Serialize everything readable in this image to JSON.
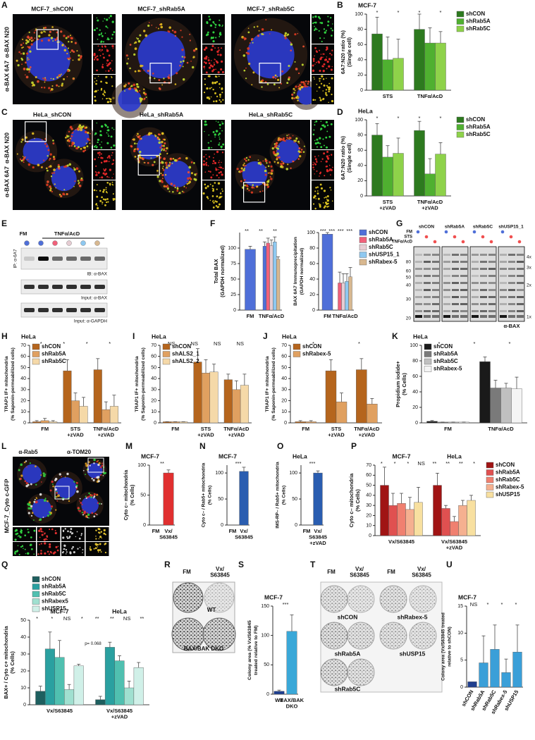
{
  "figure": {
    "panel_letters": [
      "A",
      "B",
      "C",
      "D",
      "E",
      "F",
      "G",
      "H",
      "I",
      "J",
      "K",
      "L",
      "M",
      "N",
      "O",
      "P",
      "Q",
      "R",
      "S",
      "T",
      "U"
    ],
    "A": {
      "labels": [
        "MCF-7_shCON",
        "MCF-7_shRab5A",
        "MCF-7_shRab5C"
      ],
      "stain_green": "α-BAX 6A7",
      "stain_red": "α-BAX N20"
    },
    "C": {
      "labels": [
        "HeLa_shCON",
        "HeLa_shRab5A",
        "HeLa_shRab5C"
      ],
      "stain_green": "α-BAX 6A7",
      "stain_red": "α-BAX N20"
    },
    "E": {
      "treatments": [
        "FM",
        "TNFα/AcD"
      ],
      "ip": "IP: α-6A7",
      "blots": [
        "IB: α-BAX",
        "Input: α-BAX",
        "Input: α-GAPDH"
      ]
    },
    "G": {
      "treatments": [
        "FM",
        "STS",
        "TNFα/AcD"
      ],
      "lanes": [
        "shCON",
        "shRab5A",
        "shRab5C",
        "shUSP15_1"
      ],
      "markers": [
        "80",
        "60",
        "50",
        "40",
        "30",
        "20"
      ],
      "oligomers": [
        "4x",
        "3x",
        "2x",
        "1x"
      ],
      "antibody": "α-BAX"
    },
    "L": {
      "stain_red": "α-Rab5",
      "stain_white": "α-TOM20",
      "cell_line": "MCF-7_Cyto c-GFP"
    },
    "R": {
      "columns": [
        "FM",
        "Vx/ S63845"
      ],
      "rows": [
        "WT",
        "BAX/BAK DKO"
      ]
    },
    "T": {
      "columns": [
        "FM",
        "Vx/ S63845",
        "FM",
        "Vx/ S63845"
      ],
      "wells": [
        "shCON",
        "shRabex-5",
        "shRab5A",
        "shUSP15",
        "shRab5C"
      ]
    }
  },
  "chart_data": [
    {
      "type": "bar",
      "title": "MCF-7",
      "y_label": [
        "6A7:N20 ratio (%)",
        "(Single cell)"
      ],
      "categories": [
        "STS",
        "TNFα/AcD"
      ],
      "series": [
        {
          "name": "shCON",
          "color": "#2d7a1f",
          "values": [
            74,
            80
          ],
          "errors": [
            22,
            20
          ]
        },
        {
          "name": "shRab5A",
          "color": "#4fb030",
          "values": [
            40,
            62
          ],
          "errors": [
            30,
            20
          ]
        },
        {
          "name": "shRab5C",
          "color": "#8ed24a",
          "values": [
            42,
            62
          ],
          "errors": [
            25,
            15
          ]
        }
      ],
      "ylim": [
        0,
        100
      ],
      "yticks": [
        0,
        20,
        40,
        60,
        80,
        100
      ],
      "legend": "right",
      "annotations": [
        "*",
        "*",
        "*",
        "*"
      ]
    },
    {
      "type": "bar",
      "title": "HeLa",
      "y_label": [
        "6A7:N20 ratio (%)",
        "(Single cell)"
      ],
      "categories": [
        "STS +zVAD",
        "TNFα/AcD +zVAD"
      ],
      "series": [
        {
          "name": "shCON",
          "color": "#2d7a1f",
          "values": [
            80,
            86
          ],
          "errors": [
            15,
            12
          ]
        },
        {
          "name": "shRab5A",
          "color": "#4fb030",
          "values": [
            51,
            29
          ],
          "errors": [
            15,
            20
          ]
        },
        {
          "name": "shRab5C",
          "color": "#8ed24a",
          "values": [
            56,
            55
          ],
          "errors": [
            20,
            15
          ]
        }
      ],
      "ylim": [
        0,
        100
      ],
      "yticks": [
        0,
        20,
        40,
        60,
        80,
        100
      ],
      "legend": "right",
      "annotations": [
        "*",
        "*",
        "*",
        "*"
      ]
    },
    {
      "type": "bar",
      "y_label": [
        "Total BAX",
        "(GAPDH normalized)"
      ],
      "categories": [
        "FM",
        "TNFα/AcD"
      ],
      "series": [
        {
          "name": "shCON",
          "color": "#4f6fd8",
          "values": [
            98,
            103
          ],
          "errors": [
            5,
            7
          ]
        },
        {
          "name": "shRab5A",
          "color": "#f0607a",
          "values": [
            null,
            108
          ],
          "errors": [
            null,
            8
          ]
        },
        {
          "name": "shRab5C",
          "color": "#e6cdd3",
          "values": [
            null,
            104
          ],
          "errors": [
            null,
            9
          ]
        },
        {
          "name": "shUSP15_1",
          "color": "#8ec8f0",
          "values": [
            null,
            110
          ],
          "errors": [
            null,
            8
          ]
        },
        {
          "name": "shRabex-5",
          "color": "#d8b890",
          "values": [
            null,
            82
          ],
          "errors": [
            null,
            4
          ]
        }
      ],
      "ylim": [
        0,
        125
      ],
      "yticks": [
        0,
        25,
        50,
        75,
        100
      ],
      "annotations": [
        "**",
        "**",
        "**"
      ]
    },
    {
      "type": "bar",
      "y_label": [
        "BAX 6A7 Immunoprecipitation",
        "(GAPDH normalized)"
      ],
      "categories": [
        "FM",
        "TNFα/AcD"
      ],
      "series": [
        {
          "name": "shCON",
          "color": "#4f6fd8",
          "values": [
            98,
            null
          ],
          "errors": [
            2,
            null
          ]
        },
        {
          "name": "shRab5A",
          "color": "#f0607a",
          "values": [
            null,
            35
          ],
          "errors": [
            null,
            14
          ]
        },
        {
          "name": "shRab5C",
          "color": "#e6cdd3",
          "values": [
            null,
            35
          ],
          "errors": [
            null,
            12
          ]
        },
        {
          "name": "shUSP15_1",
          "color": "#8ec8f0",
          "values": [
            null,
            37
          ],
          "errors": [
            null,
            10
          ]
        },
        {
          "name": "shRabex-5",
          "color": "#d8b890",
          "values": [
            null,
            43
          ],
          "errors": [
            null,
            12
          ]
        }
      ],
      "ylim": [
        0,
        100
      ],
      "yticks": [
        0,
        20,
        40,
        60,
        80,
        100
      ],
      "legend": "right",
      "annotations": [
        "***",
        "***",
        "***",
        "***"
      ]
    },
    {
      "type": "bar",
      "title": "HeLa",
      "y_label": [
        "TRAP1 IF+ mitochondria",
        "(% Saponin-permeabilized cells)"
      ],
      "categories": [
        "FM",
        "STS +zVAD",
        "TNFα/AcD +zVAD"
      ],
      "series": [
        {
          "name": "shCON",
          "color": "#b5651d",
          "values": [
            1,
            47,
            48
          ],
          "errors": [
            1,
            10,
            10
          ]
        },
        {
          "name": "shRab5A",
          "color": "#e0a060",
          "values": [
            2,
            20,
            12
          ],
          "errors": [
            2,
            7,
            7
          ]
        },
        {
          "name": "shRab5C",
          "color": "#f5d9a8",
          "values": [
            1,
            15,
            15
          ],
          "errors": [
            1,
            8,
            10
          ]
        }
      ],
      "ylim": [
        0,
        70
      ],
      "yticks": [
        0,
        10,
        20,
        30,
        40,
        50,
        60,
        70
      ],
      "legend": "upper-left",
      "annotations": [
        "*",
        "*",
        "*",
        "*"
      ]
    },
    {
      "type": "bar",
      "title": "HeLa",
      "y_label": [
        "TRAP1 IF+ mitochondria",
        "(% Saponin-permeabilized cells)"
      ],
      "categories": [
        "FM",
        "STS +zVAD",
        "TNFα/AcD +zVAD"
      ],
      "series": [
        {
          "name": "shCON",
          "color": "#b5651d",
          "values": [
            1,
            55,
            39
          ],
          "errors": [
            0,
            12,
            5
          ]
        },
        {
          "name": "shALS2_1",
          "color": "#e0a060",
          "values": [
            1,
            45,
            30
          ],
          "errors": [
            0,
            12,
            8
          ]
        },
        {
          "name": "shALS2_2",
          "color": "#f5d9a8",
          "values": [
            1,
            46,
            34
          ],
          "errors": [
            0,
            7,
            10
          ]
        }
      ],
      "ylim": [
        0,
        70
      ],
      "yticks": [
        0,
        10,
        20,
        30,
        40,
        50,
        60,
        70
      ],
      "legend": "upper-left",
      "annotations": [
        "NS",
        "NS",
        "NS",
        "NS"
      ]
    },
    {
      "type": "bar",
      "title": "HeLa",
      "y_label": [
        "TRAP1 IF+ mitochondria",
        "(% Saponin-permeabilized cells)"
      ],
      "categories": [
        "FM",
        "STS +zVAD",
        "TNFα/AcD +zVAD"
      ],
      "series": [
        {
          "name": "shCON",
          "color": "#b5651d",
          "values": [
            1,
            47,
            48
          ],
          "errors": [
            1,
            10,
            10
          ]
        },
        {
          "name": "shRabex-5",
          "color": "#e0a060",
          "values": [
            1,
            19,
            17
          ],
          "errors": [
            1,
            8,
            5
          ]
        }
      ],
      "ylim": [
        0,
        70
      ],
      "yticks": [
        0,
        10,
        20,
        30,
        40,
        50,
        60,
        70
      ],
      "legend": "upper-left",
      "annotations": [
        "*",
        "*"
      ]
    },
    {
      "type": "bar",
      "title": "HeLa",
      "y_label": [
        "Propidium iodide+",
        "(% Cells)"
      ],
      "categories": [
        "FM",
        "TNFα/AcD"
      ],
      "series": [
        {
          "name": "shCON",
          "color": "#1a1a1a",
          "values": [
            2,
            79
          ],
          "errors": [
            1,
            6
          ]
        },
        {
          "name": "shRab5A",
          "color": "#7a7a7a",
          "values": [
            1,
            45
          ],
          "errors": [
            0,
            10
          ]
        },
        {
          "name": "shRab5C",
          "color": "#c0c0c0",
          "values": [
            1,
            45
          ],
          "errors": [
            0,
            6
          ]
        },
        {
          "name": "shRabex-5",
          "color": "#f4f4f4",
          "values": [
            1,
            44
          ],
          "errors": [
            0,
            15
          ]
        }
      ],
      "ylim": [
        0,
        100
      ],
      "yticks": [
        0,
        20,
        40,
        60,
        80,
        100
      ],
      "legend": "upper-left",
      "annotations": [
        "*",
        "*",
        "*"
      ]
    },
    {
      "type": "bar",
      "title": "MCF-7",
      "y_label": [
        "Cyto c– mitochondria",
        "(% Cells)"
      ],
      "categories": [
        "FM",
        "Vx/ S63845"
      ],
      "values": [
        0,
        87
      ],
      "errors": [
        null,
        5
      ],
      "color": "#e03030",
      "ylim": [
        0,
        100
      ],
      "yticks": [
        0,
        50,
        100
      ],
      "annotations": [
        "**"
      ]
    },
    {
      "type": "bar",
      "title": "MCF-7",
      "y_label": [
        "Cyto c– / Rab5+ mitochondria",
        "(% Cells)"
      ],
      "categories": [
        "FM",
        "Vx/ S63845"
      ],
      "values": [
        0,
        103
      ],
      "errors": [
        null,
        8
      ],
      "color": "#2a5db0",
      "ylim": [
        0,
        115
      ],
      "yticks": [
        0,
        50,
        100
      ],
      "annotations": [
        "***"
      ]
    },
    {
      "type": "bar",
      "title": "HeLa",
      "y_label": [
        "IMS-RP– / Rab5+ mitochondria",
        "(% Cells)"
      ],
      "categories": [
        "FM",
        "Vx/ S63845 +zVAD"
      ],
      "values": [
        0,
        100
      ],
      "errors": [
        null,
        4
      ],
      "color": "#2a5db0",
      "ylim": [
        0,
        115
      ],
      "yticks": [
        0,
        50,
        100
      ],
      "annotations": [
        "***"
      ]
    },
    {
      "type": "bar",
      "group_titles": [
        "MCF-7",
        "HeLa"
      ],
      "y_label": [
        "Cyto c– mitochondria",
        "(% Cells)"
      ],
      "categories": [
        "Vx/S63845",
        "Vx/S63845 +zVAD"
      ],
      "series": [
        {
          "name": "shCON",
          "color": "#a01414",
          "values": [
            50,
            50
          ],
          "errors": [
            18,
            12
          ]
        },
        {
          "name": "shRab5A",
          "color": "#e05050",
          "values": [
            30,
            27
          ],
          "errors": [
            12,
            3
          ]
        },
        {
          "name": "shRab5C",
          "color": "#f08070",
          "values": [
            32,
            14
          ],
          "errors": [
            10,
            5
          ]
        },
        {
          "name": "shRabex-5",
          "color": "#f5b090",
          "values": [
            26,
            30
          ],
          "errors": [
            12,
            5
          ]
        },
        {
          "name": "shUSP15",
          "color": "#f8e0a0",
          "values": [
            33,
            35
          ],
          "errors": [
            15,
            5
          ]
        }
      ],
      "ylim": [
        0,
        70
      ],
      "yticks": [
        0,
        10,
        20,
        30,
        40,
        50,
        60,
        70
      ],
      "legend": "right",
      "annotations": [
        "*",
        "*",
        "*",
        "NS",
        "**",
        "**",
        "**",
        "*"
      ]
    },
    {
      "type": "bar",
      "group_titles": [
        "MCF-7",
        "HeLa"
      ],
      "y_label": [
        "BAX+ / Cyto c+ mitochondria",
        "(% Cells)"
      ],
      "categories": [
        "Vx/S63845",
        "Vx/S63845 +zVAD"
      ],
      "series": [
        {
          "name": "shCON",
          "color": "#1e5f5f",
          "values": [
            8,
            3
          ],
          "errors": [
            3,
            2
          ]
        },
        {
          "name": "shRab5A",
          "color": "#2aa0a0",
          "values": [
            33,
            34
          ],
          "errors": [
            10,
            3
          ]
        },
        {
          "name": "shRab5C",
          "color": "#50c0b0",
          "values": [
            28,
            26
          ],
          "errors": [
            10,
            3
          ]
        },
        {
          "name": "shRabex5",
          "color": "#a0e0d0",
          "values": [
            9,
            10
          ],
          "errors": [
            3,
            4
          ]
        },
        {
          "name": "shUSP15",
          "color": "#d0f0e8",
          "values": [
            23,
            22
          ],
          "errors": [
            1,
            3
          ]
        }
      ],
      "ylim": [
        0,
        50
      ],
      "yticks": [
        0,
        10,
        20,
        30,
        40,
        50
      ],
      "legend": "upper-left",
      "annotations": [
        "*",
        "*",
        "NS",
        "*",
        "**",
        "**",
        "NS",
        "**"
      ],
      "note": "p= 0.068"
    },
    {
      "type": "bar",
      "title": "MCF-7",
      "y_label": [
        "Colony area (% Vx/S63845",
        "treated relative to FM)"
      ],
      "categories": [
        "WT",
        "BAX/BAK DKO"
      ],
      "values": [
        5,
        107
      ],
      "errors": [
        2,
        28
      ],
      "colors": [
        "#1f3f8f",
        "#3aa8d8"
      ],
      "ylim": [
        0,
        150
      ],
      "yticks": [
        0,
        50,
        100,
        150
      ],
      "annotations": [
        "***"
      ]
    },
    {
      "type": "bar",
      "title": "MCF-7",
      "y_label": [
        "Colony area (Vx/S63845 treated",
        "relative to shCON)"
      ],
      "categories": [
        "shCON",
        "shRab5A",
        "shRab5C",
        "shRabex-5",
        "shUSP15"
      ],
      "values": [
        1,
        4.5,
        7,
        2.7,
        6.5
      ],
      "errors": [
        null,
        5,
        4.5,
        2.5,
        5
      ],
      "colors": [
        "#1f3f8f",
        "#3a9fd8",
        "#3a9fd8",
        "#3a9fd8",
        "#3a9fd8"
      ],
      "ylim": [
        0,
        15
      ],
      "yticks": [
        0,
        5,
        10,
        15
      ],
      "annotations": [
        "NS",
        "*",
        "*",
        "*"
      ]
    }
  ]
}
